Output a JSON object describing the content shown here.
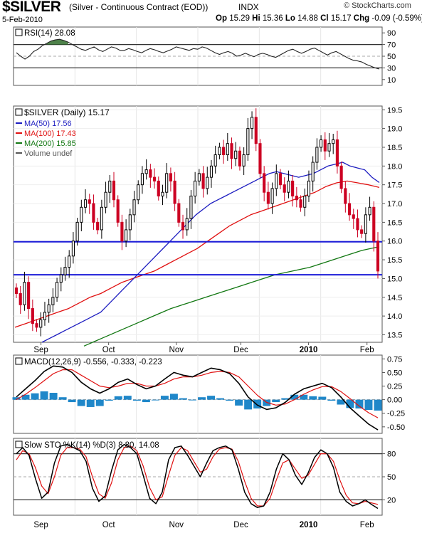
{
  "header": {
    "symbol": "$SILVER",
    "name": "(Silver - Continuous Contract (EOD))",
    "exchange": "INDX",
    "brand": "© StockCharts.com",
    "date": "5-Feb-2010",
    "quote": {
      "op_label": "Op",
      "op": "15.29",
      "hi_label": "Hi",
      "hi": "15.36",
      "lo_label": "Lo",
      "lo": "14.88",
      "cl_label": "Cl",
      "cl": "15.17",
      "chg_label": "Chg",
      "chg": "-0.09 (-0.59%)"
    }
  },
  "colors": {
    "price_up": "#000000",
    "price_down": "#cc0022",
    "ma50": "#1c1cc0",
    "ma100": "#e01010",
    "ma200": "#117711",
    "support": "#1b1bd8",
    "macd_hist": "#1f87c9",
    "rsi_fill": "#2f6b2a"
  },
  "chart_data": [
    {
      "type": "line",
      "title": "RSI(14) 28.08",
      "ylim": [
        0,
        100
      ],
      "yticks": [
        10,
        30,
        50,
        70,
        90
      ],
      "reference_lines": [
        70,
        30
      ],
      "series": [
        {
          "name": "RSI(14)",
          "values": [
            56,
            50,
            45,
            50,
            58,
            62,
            68,
            72,
            76,
            78,
            79,
            77,
            74,
            70,
            66,
            62,
            60,
            63,
            66,
            61,
            58,
            62,
            66,
            64,
            60,
            60,
            63,
            61,
            58,
            56,
            60,
            63,
            61,
            58,
            56,
            59,
            62,
            66,
            64,
            62,
            60,
            63,
            62,
            66,
            64,
            60,
            56,
            53,
            56,
            58,
            55,
            50,
            52,
            55,
            52,
            49,
            53,
            55,
            53,
            50,
            48,
            52,
            56,
            60,
            62,
            58,
            55,
            58,
            62,
            64,
            60,
            56,
            52,
            56,
            58,
            54,
            50,
            46,
            43,
            42,
            40,
            36,
            33,
            30,
            28
          ]
        }
      ]
    },
    {
      "type": "line",
      "title": "$SILVER (Daily) 15.17",
      "ylim": [
        13.3,
        19.6
      ],
      "yticks": [
        13.5,
        14.0,
        14.5,
        15.0,
        15.5,
        16.0,
        16.5,
        17.0,
        17.5,
        18.0,
        18.5,
        19.0,
        19.5
      ],
      "xticks": [
        {
          "label": "Sep",
          "day": 8
        },
        {
          "label": "Oct",
          "day": 30
        },
        {
          "label": "Nov",
          "day": 52
        },
        {
          "label": "Dec",
          "day": 73
        },
        {
          "label": "2010",
          "day": 95
        },
        {
          "label": "Feb",
          "day": 114
        }
      ],
      "legend": [
        "MA(50) 17.56",
        "MA(100) 17.43",
        "MA(200) 15.85",
        "Volume undef"
      ],
      "support_lines": [
        15.98,
        15.1
      ],
      "series": [
        {
          "name": "$SILVER",
          "values": [
            14.6,
            14.3,
            14.9,
            14.2,
            13.8,
            13.7,
            13.9,
            14.1,
            14.3,
            14.5,
            14.9,
            15.1,
            15.3,
            15.6,
            16.0,
            16.5,
            16.9,
            17.1,
            17.0,
            16.5,
            16.3,
            16.9,
            17.3,
            17.6,
            17.1,
            16.5,
            16.0,
            16.3,
            16.7,
            17.1,
            17.5,
            17.8,
            17.9,
            17.7,
            17.6,
            17.2,
            17.3,
            17.8,
            17.6,
            17.0,
            16.5,
            16.3,
            16.6,
            17.2,
            17.6,
            17.8,
            17.4,
            17.7,
            18.0,
            18.3,
            18.5,
            18.3,
            18.6,
            18.2,
            18.4,
            18.0,
            18.3,
            19.0,
            19.3,
            18.6,
            17.8,
            17.3,
            17.0,
            17.4,
            17.8,
            17.5,
            17.3,
            17.6,
            17.2,
            17.1,
            16.9,
            17.2,
            17.6,
            18.1,
            18.5,
            18.7,
            18.4,
            18.6,
            18.7,
            18.0,
            17.4,
            17.0,
            16.7,
            16.6,
            16.3,
            16.2,
            16.7,
            16.9,
            16.0,
            15.2
          ]
        },
        {
          "name": "MA(50)",
          "values": [
            13.3,
            13.4,
            13.5,
            13.6,
            13.7,
            13.8,
            13.9,
            14.0,
            14.1,
            14.3,
            14.5,
            14.7,
            14.9,
            15.1,
            15.3,
            15.5,
            15.7,
            15.9,
            16.1,
            16.3,
            16.5,
            16.7,
            16.85,
            17.0,
            17.1,
            17.2,
            17.3,
            17.4,
            17.5,
            17.6,
            17.7,
            17.8,
            17.85,
            17.8,
            17.75,
            17.7,
            17.75,
            17.8,
            17.9,
            18.0,
            18.05,
            18.1,
            18.0,
            17.95,
            17.9,
            17.7,
            17.56
          ]
        },
        {
          "name": "MA(100)",
          "values": [
            13.7,
            13.8,
            13.9,
            14.0,
            14.1,
            14.2,
            14.35,
            14.5,
            14.6,
            14.75,
            14.9,
            15.0,
            15.1,
            15.2,
            15.35,
            15.5,
            15.65,
            15.8,
            16.0,
            16.2,
            16.4,
            16.55,
            16.7,
            16.8,
            16.9,
            17.0,
            17.1,
            17.2,
            17.3,
            17.45,
            17.55,
            17.6,
            17.55,
            17.5,
            17.43
          ]
        },
        {
          "name": "MA(200)",
          "values": [
            13.2,
            13.4,
            13.6,
            13.8,
            14.0,
            14.2,
            14.35,
            14.5,
            14.65,
            14.8,
            14.95,
            15.1,
            15.2,
            15.3,
            15.45,
            15.6,
            15.75,
            15.85
          ]
        }
      ]
    },
    {
      "type": "line",
      "title": "MACD(12,26,9) -0.556, -0.333, -0.223",
      "ylim": [
        -0.62,
        0.82
      ],
      "yticks": [
        -0.5,
        -0.25,
        0.0,
        0.25,
        0.5,
        0.75
      ],
      "series": [
        {
          "name": "MACD(12,26,9)",
          "values": [
            0.05,
            0.2,
            0.35,
            0.52,
            0.62,
            0.6,
            0.5,
            0.32,
            0.2,
            0.12,
            0.2,
            0.32,
            0.38,
            0.28,
            0.2,
            0.25,
            0.38,
            0.5,
            0.45,
            0.42,
            0.5,
            0.58,
            0.55,
            0.48,
            0.3,
            0.05,
            -0.1,
            -0.18,
            -0.15,
            -0.05,
            0.1,
            0.2,
            0.25,
            0.3,
            0.22,
            0.05,
            -0.15,
            -0.3,
            -0.45,
            -0.556
          ]
        },
        {
          "name": "Signal",
          "values": [
            0.0,
            0.1,
            0.22,
            0.35,
            0.48,
            0.55,
            0.55,
            0.45,
            0.35,
            0.25,
            0.22,
            0.25,
            0.3,
            0.3,
            0.25,
            0.25,
            0.3,
            0.38,
            0.42,
            0.42,
            0.45,
            0.5,
            0.52,
            0.5,
            0.42,
            0.25,
            0.08,
            -0.05,
            -0.1,
            -0.08,
            0.0,
            0.1,
            0.18,
            0.24,
            0.24,
            0.15,
            0.02,
            -0.12,
            -0.24,
            -0.333
          ]
        },
        {
          "name": "Histogram",
          "values": [
            0.05,
            0.1,
            0.13,
            0.17,
            0.14,
            0.05,
            -0.05,
            -0.13,
            -0.15,
            -0.13,
            -0.02,
            0.07,
            0.08,
            -0.02,
            -0.05,
            0.0,
            0.08,
            0.12,
            0.03,
            0.0,
            0.05,
            0.08,
            0.03,
            -0.02,
            -0.12,
            -0.2,
            -0.18,
            -0.13,
            -0.05,
            0.03,
            0.1,
            0.1,
            0.07,
            0.06,
            -0.02,
            -0.1,
            -0.17,
            -0.18,
            -0.21,
            -0.223
          ]
        }
      ]
    },
    {
      "type": "line",
      "title": "Slow STO %K(14) %D(3) 8.80, 14.08",
      "ylim": [
        0,
        100
      ],
      "yticks": [
        20,
        50,
        80
      ],
      "reference_lines": [
        80,
        20
      ],
      "series": [
        {
          "name": "%K(14)",
          "values": [
            80,
            88,
            78,
            48,
            22,
            30,
            68,
            90,
            92,
            88,
            84,
            70,
            35,
            18,
            25,
            58,
            85,
            92,
            88,
            80,
            52,
            22,
            15,
            30,
            72,
            88,
            90,
            78,
            64,
            50,
            68,
            84,
            88,
            90,
            85,
            60,
            30,
            15,
            10,
            12,
            30,
            60,
            80,
            72,
            52,
            40,
            55,
            75,
            85,
            80,
            62,
            30,
            18,
            12,
            15,
            20,
            14,
            8.8
          ]
        },
        {
          "name": "%D(3)",
          "values": [
            72,
            84,
            80,
            62,
            38,
            28,
            50,
            78,
            88,
            88,
            86,
            76,
            50,
            28,
            22,
            42,
            72,
            88,
            90,
            84,
            64,
            36,
            20,
            24,
            52,
            78,
            88,
            84,
            70,
            56,
            60,
            76,
            86,
            88,
            86,
            70,
            44,
            22,
            12,
            12,
            22,
            46,
            68,
            72,
            60,
            48,
            52,
            66,
            80,
            80,
            70,
            46,
            26,
            16,
            15,
            18,
            16,
            14.08
          ]
        }
      ]
    }
  ]
}
